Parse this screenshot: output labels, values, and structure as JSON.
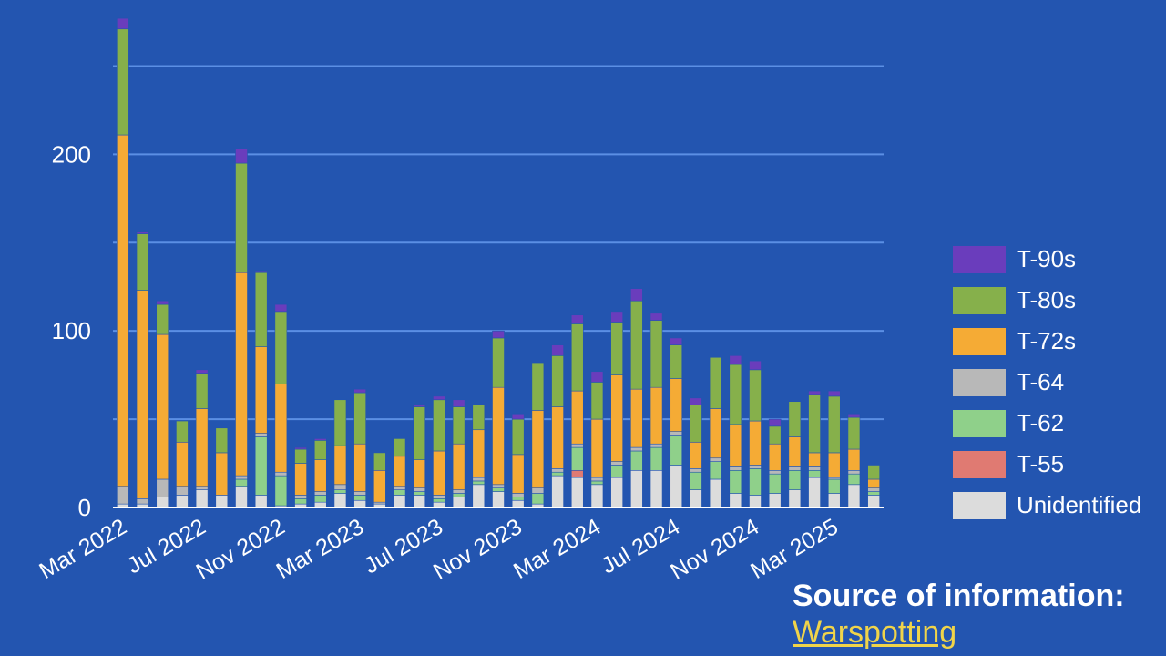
{
  "chart_data": {
    "type": "bar",
    "stacked": true,
    "ylim": [
      0,
      275
    ],
    "yticks": [
      0,
      100,
      200
    ],
    "gridlines": [
      50,
      100,
      150,
      200,
      250
    ],
    "tick_labels": [
      {
        "index": 0,
        "label": "Mar 2022"
      },
      {
        "index": 4,
        "label": "Jul 2022"
      },
      {
        "index": 8,
        "label": "Nov 2022"
      },
      {
        "index": 12,
        "label": "Mar 2023"
      },
      {
        "index": 16,
        "label": "Jul 2023"
      },
      {
        "index": 20,
        "label": "Nov 2023"
      },
      {
        "index": 24,
        "label": "Mar 2024"
      },
      {
        "index": 28,
        "label": "Jul 2024"
      },
      {
        "index": 32,
        "label": "Nov 2024"
      },
      {
        "index": 36,
        "label": "Mar 2025"
      }
    ],
    "categories": [
      "Mar 2022",
      "Apr 2022",
      "May 2022",
      "Jun 2022",
      "Jul 2022",
      "Aug 2022",
      "Sep 2022",
      "Oct 2022",
      "Nov 2022",
      "Dec 2022",
      "Jan 2023",
      "Feb 2023",
      "Mar 2023",
      "Apr 2023",
      "May 2023",
      "Jun 2023",
      "Jul 2023",
      "Aug 2023",
      "Sep 2023",
      "Oct 2023",
      "Nov 2023",
      "Dec 2023",
      "Jan 2024",
      "Feb 2024",
      "Mar 2024",
      "Apr 2024",
      "May 2024",
      "Jun 2024",
      "Jul 2024",
      "Aug 2024",
      "Sep 2024",
      "Oct 2024",
      "Nov 2024",
      "Dec 2024",
      "Jan 2025",
      "Feb 2025",
      "Mar 2025",
      "Apr 2025",
      "May 2025"
    ],
    "series": [
      {
        "name": "Unidentified",
        "color": "#dcdcdc",
        "values": [
          2,
          2,
          6,
          7,
          10,
          7,
          12,
          7,
          1,
          2,
          3,
          8,
          4,
          2,
          7,
          7,
          3,
          6,
          13,
          9,
          4,
          2,
          18,
          17,
          13,
          17,
          21,
          21,
          24,
          10,
          16,
          8,
          7,
          8,
          10,
          17,
          8,
          13,
          7
        ]
      },
      {
        "name": "T-55",
        "color": "#e07a72",
        "values": [
          0,
          0,
          0,
          0,
          0,
          0,
          0,
          0,
          0,
          0,
          0,
          0,
          0,
          0,
          0,
          0,
          0,
          0,
          0,
          0,
          0,
          0,
          0,
          4,
          0,
          0,
          0,
          0,
          0,
          0,
          0,
          0,
          0,
          0,
          0,
          0,
          0,
          0,
          0
        ]
      },
      {
        "name": "T-62",
        "color": "#8fd08a",
        "values": [
          0,
          0,
          0,
          0,
          0,
          0,
          4,
          33,
          17,
          3,
          4,
          2,
          3,
          0,
          3,
          2,
          2,
          2,
          2,
          2,
          2,
          6,
          2,
          13,
          2,
          7,
          11,
          13,
          17,
          10,
          10,
          13,
          15,
          11,
          11,
          4,
          8,
          6,
          2
        ]
      },
      {
        "name": "T-64",
        "color": "#b8b8b8",
        "values": [
          10,
          3,
          10,
          5,
          2,
          0,
          2,
          2,
          2,
          2,
          2,
          3,
          2,
          1,
          2,
          2,
          2,
          2,
          2,
          2,
          2,
          3,
          2,
          2,
          2,
          2,
          2,
          2,
          2,
          2,
          2,
          2,
          2,
          2,
          2,
          2,
          1,
          2,
          2
        ]
      },
      {
        "name": "T-72s",
        "color": "#f5ab35",
        "values": [
          199,
          118,
          82,
          25,
          44,
          24,
          115,
          49,
          50,
          18,
          18,
          22,
          27,
          18,
          17,
          16,
          25,
          26,
          27,
          55,
          22,
          44,
          35,
          30,
          33,
          49,
          33,
          32,
          30,
          15,
          28,
          24,
          25,
          15,
          17,
          8,
          14,
          12,
          5
        ]
      },
      {
        "name": "T-80s",
        "color": "#86b04b",
        "values": [
          60,
          32,
          17,
          12,
          20,
          14,
          62,
          42,
          41,
          8,
          11,
          26,
          29,
          10,
          10,
          30,
          29,
          21,
          14,
          28,
          20,
          27,
          29,
          38,
          21,
          30,
          50,
          38,
          19,
          21,
          29,
          34,
          29,
          10,
          20,
          33,
          32,
          18,
          8
        ]
      },
      {
        "name": "T-90s",
        "color": "#6a3dbc",
        "values": [
          6,
          1,
          2,
          0,
          2,
          0,
          8,
          1,
          4,
          1,
          1,
          0,
          2,
          0,
          0,
          1,
          2,
          4,
          0,
          4,
          3,
          0,
          6,
          5,
          6,
          6,
          7,
          4,
          4,
          4,
          0,
          5,
          5,
          4,
          0,
          2,
          3,
          2,
          0
        ]
      }
    ],
    "legend_order": [
      "T-90s",
      "T-80s",
      "T-72s",
      "T-64",
      "T-62",
      "T-55",
      "Unidentified"
    ],
    "title": "",
    "xlabel": "",
    "ylabel": "",
    "legend_position": "right"
  },
  "source": {
    "title": "Source of information:",
    "link_text": "Warspotting"
  }
}
